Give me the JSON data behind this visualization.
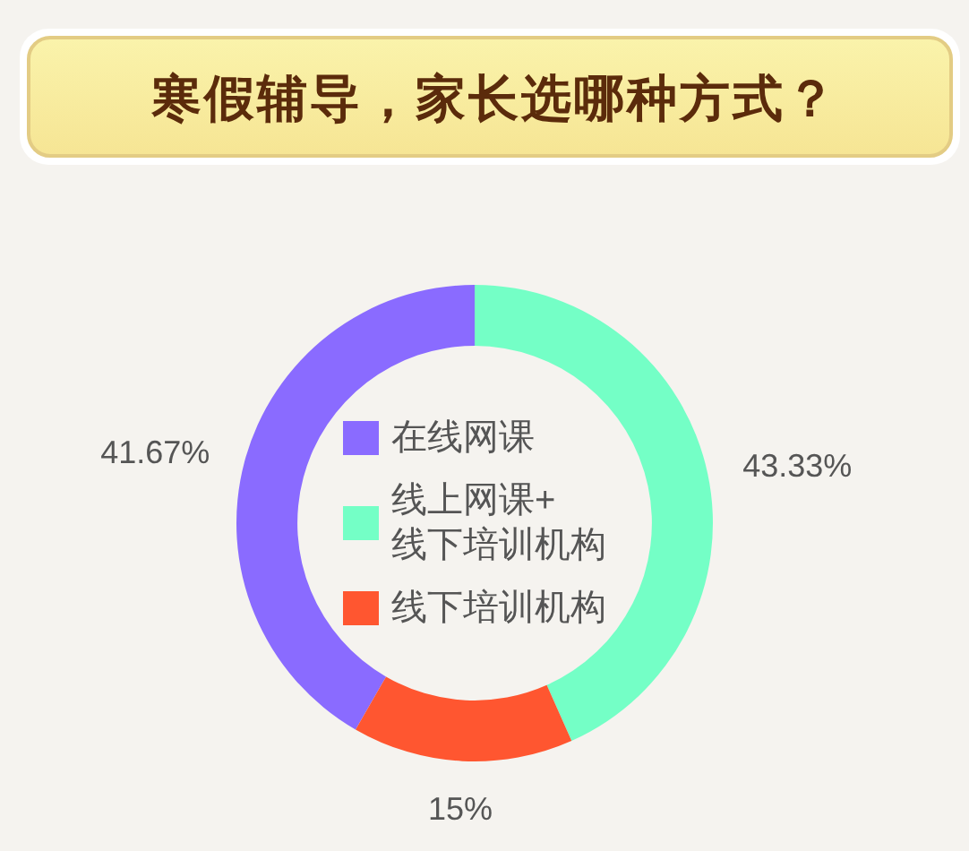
{
  "chart_data": {
    "type": "donut",
    "title": "寒假辅导，家长选哪种方式？",
    "categories": [
      "在线网课",
      "线上网课+\n线下培训机构",
      "线下培训机构"
    ],
    "values": [
      41.67,
      43.33,
      15
    ],
    "colors": [
      "#8a6bff",
      "#74ffc6",
      "#ff5630"
    ],
    "value_labels": [
      "41.67%",
      "43.33%",
      "15%"
    ],
    "legend": "center"
  }
}
